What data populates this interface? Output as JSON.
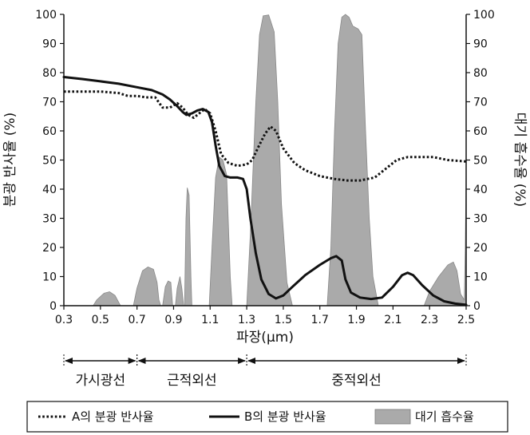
{
  "chart_data": {
    "type": "line",
    "xlabel": "파장(μm)",
    "ylabel_left": "분광 반사율 (%)",
    "ylabel_right": "대기 흡수율 (%)",
    "xlim": [
      0.3,
      2.5
    ],
    "ylim": [
      0,
      100
    ],
    "x_ticks": [
      0.3,
      0.5,
      0.7,
      0.9,
      1.1,
      1.3,
      1.5,
      1.7,
      1.9,
      2.1,
      2.3,
      2.5
    ],
    "y_ticks": [
      0,
      10,
      20,
      30,
      40,
      50,
      60,
      70,
      80,
      90,
      100
    ],
    "grid": false,
    "legend_position": "bottom",
    "series": [
      {
        "name": "A의 분광 반사율",
        "style": "dotted",
        "color": "#111111",
        "points": [
          [
            0.3,
            73.5
          ],
          [
            0.4,
            73.5
          ],
          [
            0.5,
            73.5
          ],
          [
            0.6,
            73
          ],
          [
            0.65,
            72
          ],
          [
            0.7,
            72
          ],
          [
            0.75,
            71.5
          ],
          [
            0.8,
            71.5
          ],
          [
            0.84,
            68
          ],
          [
            0.88,
            68
          ],
          [
            0.92,
            69.5
          ],
          [
            0.95,
            68
          ],
          [
            0.98,
            65.5
          ],
          [
            1.01,
            64.5
          ],
          [
            1.04,
            66
          ],
          [
            1.07,
            67.5
          ],
          [
            1.1,
            66
          ],
          [
            1.13,
            60
          ],
          [
            1.16,
            52
          ],
          [
            1.2,
            49
          ],
          [
            1.25,
            48
          ],
          [
            1.3,
            48.5
          ],
          [
            1.33,
            50
          ],
          [
            1.36,
            54
          ],
          [
            1.4,
            59
          ],
          [
            1.43,
            61.5
          ],
          [
            1.46,
            60
          ],
          [
            1.5,
            54
          ],
          [
            1.56,
            49
          ],
          [
            1.62,
            46.5
          ],
          [
            1.7,
            44.5
          ],
          [
            1.78,
            43.5
          ],
          [
            1.85,
            43
          ],
          [
            1.92,
            43
          ],
          [
            2.0,
            44
          ],
          [
            2.06,
            47
          ],
          [
            2.12,
            50
          ],
          [
            2.18,
            51
          ],
          [
            2.25,
            51
          ],
          [
            2.32,
            51
          ],
          [
            2.4,
            50
          ],
          [
            2.5,
            49.5
          ]
        ]
      },
      {
        "name": "B의 분광 반사율",
        "style": "solid",
        "color": "#111111",
        "points": [
          [
            0.3,
            78.5
          ],
          [
            0.4,
            77.8
          ],
          [
            0.5,
            77
          ],
          [
            0.6,
            76.2
          ],
          [
            0.7,
            75
          ],
          [
            0.78,
            74
          ],
          [
            0.84,
            72.5
          ],
          [
            0.88,
            70.8
          ],
          [
            0.92,
            68.5
          ],
          [
            0.95,
            66.5
          ],
          [
            0.97,
            65.5
          ],
          [
            1.0,
            66
          ],
          [
            1.03,
            67
          ],
          [
            1.06,
            67.5
          ],
          [
            1.09,
            66.5
          ],
          [
            1.11,
            63
          ],
          [
            1.13,
            55
          ],
          [
            1.15,
            48
          ],
          [
            1.18,
            44.5
          ],
          [
            1.21,
            44
          ],
          [
            1.25,
            44
          ],
          [
            1.28,
            43.5
          ],
          [
            1.3,
            40
          ],
          [
            1.32,
            30
          ],
          [
            1.35,
            18
          ],
          [
            1.38,
            9
          ],
          [
            1.42,
            4
          ],
          [
            1.46,
            2.5
          ],
          [
            1.5,
            3.5
          ],
          [
            1.55,
            6.5
          ],
          [
            1.62,
            10.5
          ],
          [
            1.7,
            14
          ],
          [
            1.76,
            16.3
          ],
          [
            1.79,
            17
          ],
          [
            1.82,
            15.5
          ],
          [
            1.84,
            9
          ],
          [
            1.87,
            4.5
          ],
          [
            1.92,
            2.8
          ],
          [
            1.98,
            2.3
          ],
          [
            2.04,
            2.8
          ],
          [
            2.1,
            6.5
          ],
          [
            2.15,
            10.5
          ],
          [
            2.18,
            11.3
          ],
          [
            2.21,
            10.5
          ],
          [
            2.26,
            7
          ],
          [
            2.32,
            3.5
          ],
          [
            2.38,
            1.5
          ],
          [
            2.44,
            0.7
          ],
          [
            2.5,
            0.3
          ]
        ]
      },
      {
        "name": "대기 흡수율",
        "style": "area",
        "color": "#aaaaaa",
        "points": [
          [
            0.46,
            0
          ],
          [
            0.48,
            2
          ],
          [
            0.52,
            4.3
          ],
          [
            0.55,
            4.8
          ],
          [
            0.58,
            3.5
          ],
          [
            0.61,
            0
          ],
          [
            0.68,
            0
          ],
          [
            0.7,
            6
          ],
          [
            0.73,
            12
          ],
          [
            0.76,
            13.3
          ],
          [
            0.79,
            12.5
          ],
          [
            0.81,
            8
          ],
          [
            0.82,
            2
          ],
          [
            0.83,
            0
          ],
          [
            0.84,
            0
          ],
          [
            0.855,
            6.5
          ],
          [
            0.87,
            8.5
          ],
          [
            0.885,
            8
          ],
          [
            0.895,
            0
          ],
          [
            0.91,
            0
          ],
          [
            0.92,
            6
          ],
          [
            0.935,
            10
          ],
          [
            0.945,
            6
          ],
          [
            0.955,
            0
          ],
          [
            0.96,
            0
          ],
          [
            0.968,
            30
          ],
          [
            0.975,
            40.5
          ],
          [
            0.985,
            38
          ],
          [
            0.995,
            10
          ],
          [
            1.0,
            0
          ],
          [
            1.095,
            0
          ],
          [
            1.11,
            20
          ],
          [
            1.13,
            44
          ],
          [
            1.15,
            51
          ],
          [
            1.17,
            50
          ],
          [
            1.19,
            45
          ],
          [
            1.21,
            10
          ],
          [
            1.22,
            0
          ],
          [
            1.3,
            0
          ],
          [
            1.32,
            25
          ],
          [
            1.35,
            70
          ],
          [
            1.37,
            93
          ],
          [
            1.39,
            99.5
          ],
          [
            1.42,
            99.8
          ],
          [
            1.45,
            94
          ],
          [
            1.47,
            70
          ],
          [
            1.49,
            35
          ],
          [
            1.52,
            8
          ],
          [
            1.55,
            0
          ],
          [
            1.74,
            0
          ],
          [
            1.76,
            20
          ],
          [
            1.78,
            60
          ],
          [
            1.8,
            90
          ],
          [
            1.82,
            99
          ],
          [
            1.84,
            100
          ],
          [
            1.86,
            99
          ],
          [
            1.88,
            96
          ],
          [
            1.91,
            95
          ],
          [
            1.93,
            93
          ],
          [
            1.95,
            60
          ],
          [
            1.97,
            30
          ],
          [
            1.99,
            10
          ],
          [
            2.02,
            0
          ],
          [
            2.27,
            0
          ],
          [
            2.3,
            5
          ],
          [
            2.35,
            10
          ],
          [
            2.4,
            14
          ],
          [
            2.43,
            15
          ],
          [
            2.45,
            12
          ],
          [
            2.47,
            4
          ],
          [
            2.49,
            2
          ],
          [
            2.495,
            20
          ],
          [
            2.5,
            47
          ]
        ]
      }
    ],
    "regions": [
      {
        "label": "가시광선",
        "from": 0.3,
        "to": 0.7
      },
      {
        "label": "근적외선",
        "from": 0.7,
        "to": 1.3
      },
      {
        "label": "중적외선",
        "from": 1.3,
        "to": 2.5
      }
    ]
  }
}
